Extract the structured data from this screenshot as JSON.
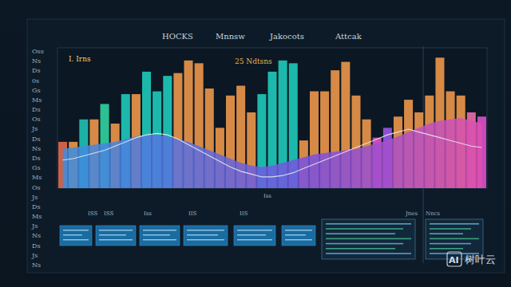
{
  "chart_data": {
    "type": "bar",
    "categories": [
      null,
      null,
      null,
      null,
      null,
      null,
      null,
      null,
      null,
      null,
      null,
      null,
      null,
      null,
      null,
      null,
      null,
      null,
      null,
      null,
      null,
      null,
      null,
      null,
      null,
      null,
      null,
      null,
      null,
      null,
      null,
      null,
      null,
      null,
      null,
      null,
      null,
      null,
      null,
      null,
      null
    ],
    "ylim": [
      0,
      100
    ],
    "tick_labels": false,
    "grid": false,
    "series": [
      {
        "type": "bar",
        "colors": [
          "#e0684a",
          "#e8954a",
          "#1fbfb0",
          "#e8954a",
          "#2fd0a0",
          "#e8954a",
          "#1fc7b8",
          "#e8954a",
          "#1fc7b8",
          "#1fc7b8",
          "#1fc7b8",
          "#e8954a",
          "#e8954a",
          "#e8954a",
          "#e8954a",
          "#e8954a",
          "#e8954a",
          "#e8954a",
          "#e8954a",
          "#1fc7b8",
          "#1fc7b8",
          "#1fc7b8",
          "#1fc7b8",
          "#e8954a",
          "#e8954a",
          "#e8954a",
          "#e8954a",
          "#e8954a",
          "#e8954a",
          "#e8954a",
          "#d94fc8",
          "#9a55e0",
          "#e8954a",
          "#e8954a",
          "#e8954a",
          "#e8954a",
          "#e8954a",
          "#e8954a",
          "#e8954a",
          "#e86aa6",
          "#d94fc8"
        ],
        "values": [
          33,
          33,
          49,
          49,
          60,
          46,
          67,
          67,
          83,
          69,
          80,
          82,
          91,
          89,
          71,
          43,
          66,
          73,
          54,
          67,
          83,
          91,
          89,
          34,
          69,
          69,
          84,
          90,
          66,
          49,
          36,
          43,
          51,
          63,
          54,
          66,
          93,
          69,
          66,
          54,
          51
        ]
      },
      {
        "type": "area",
        "color": "#3d8fe0",
        "values": [
          28,
          29,
          30,
          31,
          32,
          33,
          35,
          37,
          38,
          38,
          37,
          35,
          33,
          30,
          27,
          24,
          21,
          18,
          16,
          15,
          16,
          18,
          20,
          22,
          24,
          25,
          26,
          27,
          28,
          30,
          32,
          34,
          37,
          40,
          43,
          46,
          48,
          49,
          50,
          48,
          46
        ]
      },
      {
        "type": "line",
        "color": "#e8eef5",
        "values": [
          20,
          21,
          23,
          25,
          27,
          30,
          33,
          36,
          38,
          39,
          38,
          35,
          31,
          27,
          23,
          19,
          15,
          12,
          10,
          8,
          8,
          9,
          11,
          14,
          17,
          20,
          23,
          26,
          29,
          32,
          35,
          38,
          40,
          42,
          40,
          38,
          36,
          34,
          32,
          30,
          29
        ]
      }
    ]
  },
  "page": {
    "header_labels": [
      "HOCKS",
      "Mnnsw",
      "Jakocots",
      "Attcak"
    ],
    "plot_labels": [
      "I. Irns",
      "25 Ndtsns"
    ],
    "side_labels": [
      "Oss",
      "Ns",
      "Ds",
      "0s",
      "Gs",
      "Ms",
      "Ds",
      "Os",
      "Js",
      "Ds",
      "Ns",
      "Ds",
      "Gs",
      "Ms",
      "Os",
      "Js",
      "Ds",
      "Ms",
      "Js",
      "Ns",
      "Ds",
      "Js",
      "Ns"
    ],
    "panel_labels": [
      "ISS",
      "ISS",
      "Iss",
      "IIS",
      "IIS",
      "Iss",
      "Jnes",
      "Nncs"
    ],
    "watermark": [
      "AI",
      "树叶云"
    ]
  }
}
